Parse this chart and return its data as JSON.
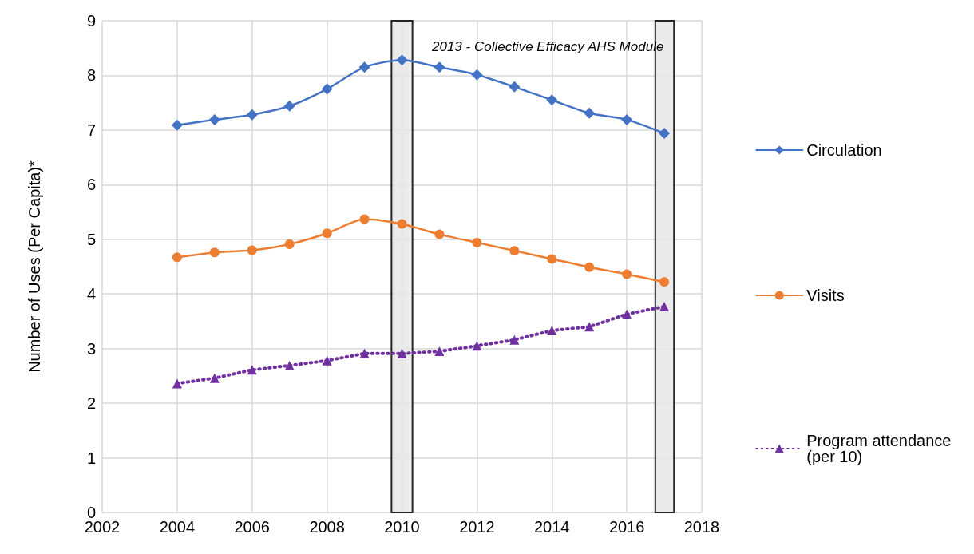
{
  "chart_data": {
    "type": "line",
    "ylabel": "Number of Uses (Per Capita)*",
    "annotations": [
      "2013 - Collective Efficacy AHS Module"
    ],
    "x": [
      2004,
      2005,
      2006,
      2007,
      2008,
      2009,
      2010,
      2011,
      2012,
      2013,
      2014,
      2015,
      2016,
      2017
    ],
    "series": [
      {
        "name": "Circulation",
        "color": "#4472c4",
        "marker": "diamond",
        "line_style": "solid",
        "values": [
          7.09,
          7.19,
          7.28,
          7.44,
          7.75,
          8.15,
          8.28,
          8.15,
          8.01,
          7.79,
          7.55,
          7.31,
          7.19,
          6.94
        ]
      },
      {
        "name": "Visits",
        "color": "#ed7d31",
        "marker": "circle",
        "line_style": "solid",
        "values": [
          4.67,
          4.76,
          4.8,
          4.91,
          5.11,
          5.37,
          5.28,
          5.09,
          4.94,
          4.79,
          4.64,
          4.49,
          4.36,
          4.22
        ]
      },
      {
        "name": "Program attendance (per 10)",
        "color": "#7030a0",
        "marker": "triangle",
        "line_style": "dotted",
        "values": [
          2.36,
          2.46,
          2.61,
          2.69,
          2.78,
          2.91,
          2.91,
          2.95,
          3.05,
          3.16,
          3.33,
          3.4,
          3.63,
          3.77
        ]
      }
    ],
    "bands": [
      {
        "axis": "x",
        "from": 2009.72,
        "to": 2010.28,
        "color": "#e7e6e6"
      },
      {
        "axis": "x",
        "from": 2016.76,
        "to": 2017.26,
        "color": "#e7e6e6"
      }
    ],
    "xlim": [
      2002,
      2018
    ],
    "xticks": [
      2002,
      2004,
      2006,
      2008,
      2010,
      2012,
      2014,
      2016,
      2018
    ],
    "ylim": [
      0,
      9
    ],
    "yticks": [
      0,
      1,
      2,
      3,
      4,
      5,
      6,
      7,
      8,
      9
    ],
    "grid": true,
    "legend": "right"
  }
}
